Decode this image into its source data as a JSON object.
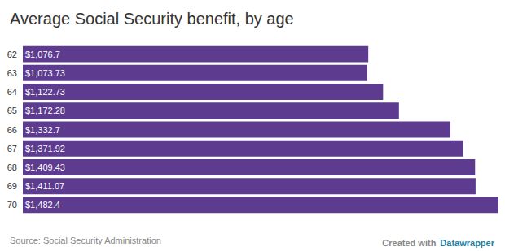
{
  "chart_data": {
    "type": "bar",
    "title": "Average Social Security benefit, by age",
    "source": "Source: Social Security Administration",
    "credit": [
      "Created with",
      "Datawrapper"
    ],
    "orientation": "horizontal",
    "categories": [
      "62",
      "63",
      "64",
      "65",
      "66",
      "67",
      "68",
      "69",
      "70"
    ],
    "values": [
      1076.7,
      1073.73,
      1122.73,
      1172.28,
      1332.7,
      1371.92,
      1409.43,
      1411.07,
      1482.4
    ],
    "value_labels": [
      "$1,076.7",
      "$1,073.73",
      "$1,122.73",
      "$1,172.28",
      "$1,332.7",
      "$1,371.92",
      "$1,409.43",
      "$1,411.07",
      "$1,482.4"
    ],
    "data_labels": true,
    "color": "#5d3b8f",
    "xlim": [
      0,
      1482.4
    ],
    "grid": false,
    "tick_labels": "y"
  }
}
